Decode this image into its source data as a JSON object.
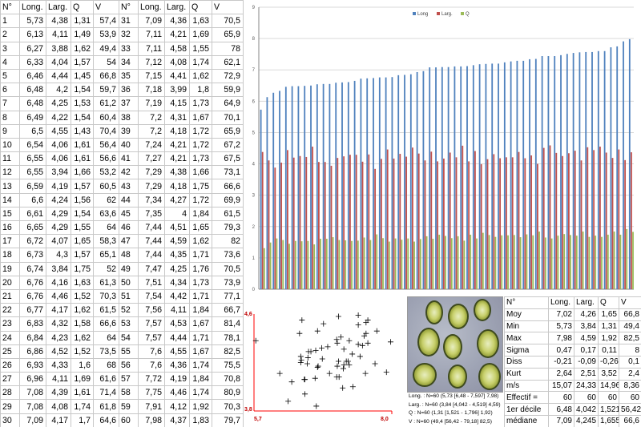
{
  "table": {
    "headers": [
      "N°",
      "Long.",
      "Larg.",
      "Q",
      "V",
      "N°",
      "Long.",
      "Larg.",
      "Q",
      "V"
    ],
    "rows": [
      [
        "1",
        "5,73",
        "4,38",
        "1,31",
        "57,4",
        "31",
        "7,09",
        "4,36",
        "1,63",
        "70,5"
      ],
      [
        "2",
        "6,13",
        "4,11",
        "1,49",
        "53,9",
        "32",
        "7,11",
        "4,21",
        "1,69",
        "65,9"
      ],
      [
        "3",
        "6,27",
        "3,88",
        "1,62",
        "49,4",
        "33",
        "7,11",
        "4,58",
        "1,55",
        "78"
      ],
      [
        "4",
        "6,33",
        "4,04",
        "1,57",
        "54",
        "34",
        "7,12",
        "4,08",
        "1,74",
        "62,1"
      ],
      [
        "5",
        "6,46",
        "4,44",
        "1,45",
        "66,8",
        "35",
        "7,15",
        "4,41",
        "1,62",
        "72,9"
      ],
      [
        "6",
        "6,48",
        "4,2",
        "1,54",
        "59,7",
        "36",
        "7,18",
        "3,99",
        "1,8",
        "59,9"
      ],
      [
        "7",
        "6,48",
        "4,25",
        "1,53",
        "61,2",
        "37",
        "7,19",
        "4,15",
        "1,73",
        "64,9"
      ],
      [
        "8",
        "6,49",
        "4,22",
        "1,54",
        "60,4",
        "38",
        "7,2",
        "4,31",
        "1,67",
        "70,1"
      ],
      [
        "9",
        "6,5",
        "4,55",
        "1,43",
        "70,4",
        "39",
        "7,2",
        "4,18",
        "1,72",
        "65,9"
      ],
      [
        "10",
        "6,54",
        "4,06",
        "1,61",
        "56,4",
        "40",
        "7,24",
        "4,21",
        "1,72",
        "67,2"
      ],
      [
        "11",
        "6,55",
        "4,06",
        "1,61",
        "56,6",
        "41",
        "7,27",
        "4,21",
        "1,73",
        "67,5"
      ],
      [
        "12",
        "6,55",
        "3,94",
        "1,66",
        "53,2",
        "42",
        "7,29",
        "4,38",
        "1,66",
        "73,1"
      ],
      [
        "13",
        "6,59",
        "4,19",
        "1,57",
        "60,5",
        "43",
        "7,29",
        "4,18",
        "1,75",
        "66,6"
      ],
      [
        "14",
        "6,6",
        "4,24",
        "1,56",
        "62",
        "44",
        "7,34",
        "4,27",
        "1,72",
        "69,9"
      ],
      [
        "15",
        "6,61",
        "4,29",
        "1,54",
        "63,6",
        "45",
        "7,35",
        "4",
        "1,84",
        "61,5"
      ],
      [
        "16",
        "6,65",
        "4,29",
        "1,55",
        "64",
        "46",
        "7,44",
        "4,51",
        "1,65",
        "79,3"
      ],
      [
        "17",
        "6,72",
        "4,07",
        "1,65",
        "58,3",
        "47",
        "7,44",
        "4,59",
        "1,62",
        "82"
      ],
      [
        "18",
        "6,73",
        "4,3",
        "1,57",
        "65,1",
        "48",
        "7,44",
        "4,35",
        "1,71",
        "73,6"
      ],
      [
        "19",
        "6,74",
        "3,84",
        "1,75",
        "52",
        "49",
        "7,47",
        "4,25",
        "1,76",
        "70,5"
      ],
      [
        "20",
        "6,76",
        "4,16",
        "1,63",
        "61,3",
        "50",
        "7,51",
        "4,34",
        "1,73",
        "73,9"
      ],
      [
        "21",
        "6,76",
        "4,46",
        "1,52",
        "70,3",
        "51",
        "7,54",
        "4,42",
        "1,71",
        "77,1"
      ],
      [
        "22",
        "6,77",
        "4,17",
        "1,62",
        "61,5",
        "52",
        "7,56",
        "4,11",
        "1,84",
        "66,7"
      ],
      [
        "23",
        "6,83",
        "4,32",
        "1,58",
        "66,6",
        "53",
        "7,57",
        "4,53",
        "1,67",
        "81,4"
      ],
      [
        "24",
        "6,84",
        "4,23",
        "1,62",
        "64",
        "54",
        "7,57",
        "4,44",
        "1,71",
        "78,1"
      ],
      [
        "25",
        "6,86",
        "4,52",
        "1,52",
        "73,5",
        "55",
        "7,6",
        "4,55",
        "1,67",
        "82,5"
      ],
      [
        "26",
        "6,93",
        "4,33",
        "1,6",
        "68",
        "56",
        "7,6",
        "4,36",
        "1,74",
        "75,5"
      ],
      [
        "27",
        "6,96",
        "4,11",
        "1,69",
        "61,6",
        "57",
        "7,72",
        "4,19",
        "1,84",
        "70,8"
      ],
      [
        "28",
        "7,08",
        "4,39",
        "1,61",
        "71,4",
        "58",
        "7,75",
        "4,46",
        "1,74",
        "80,9"
      ],
      [
        "29",
        "7,08",
        "4,08",
        "1,74",
        "61,8",
        "59",
        "7,91",
        "4,12",
        "1,92",
        "70,3"
      ],
      [
        "30",
        "7,09",
        "4,17",
        "1,7",
        "64,6",
        "60",
        "7,98",
        "4,37",
        "1,83",
        "79,7"
      ]
    ]
  },
  "stats": {
    "headers": [
      "N°",
      "Long.",
      "Larg.",
      "Q",
      "V"
    ],
    "rows": [
      [
        "Moy",
        "7,02",
        "4,26",
        "1,65",
        "66,8"
      ],
      [
        "Min",
        "5,73",
        "3,84",
        "1,31",
        "49,4"
      ],
      [
        "Max",
        "7,98",
        "4,59",
        "1,92",
        "82,5"
      ],
      [
        "Sigma",
        "0,47",
        "0,17",
        "0,11",
        "8"
      ],
      [
        "Diss",
        "-0,21",
        "-0,09",
        "-0,26",
        "0,1"
      ],
      [
        "Kurt",
        "2,64",
        "2,51",
        "3,52",
        "2,4"
      ],
      [
        "m/s",
        "15,07",
        "24,33",
        "14,96",
        "8,36"
      ],
      [
        "Effectif =",
        "60",
        "60",
        "60",
        "60"
      ],
      [
        "1er décile",
        "6,48",
        "4,042",
        "1,521",
        "56,42"
      ],
      [
        "médiane",
        "7,09",
        "4,245",
        "1,655",
        "66,6"
      ],
      [
        "9ème décile",
        "7,597",
        "4,519",
        "1,796",
        "79,18"
      ]
    ]
  },
  "measurements": [
    "Long. : N=60  (5,73 [6,48 - 7,597] 7,98)",
    "Larg. : N=60  (3,84 [4,042 - 4,519] 4,59)",
    "Q : N=60  (1,31 [1,521 - 1,796] 1,92)",
    "V : N=60  (49,4 [56,42 - 79,18] 82,5)"
  ],
  "chart_data": [
    {
      "type": "bar",
      "ylim": [
        0,
        9
      ],
      "yticks": [
        "0",
        "1",
        "2",
        "3",
        "4",
        "5",
        "6",
        "7",
        "8",
        "9"
      ],
      "legend_position": "top-center",
      "categories": [
        "1",
        "2",
        "3",
        "4",
        "5",
        "6",
        "7",
        "8",
        "9",
        "10",
        "11",
        "12",
        "13",
        "14",
        "15",
        "16",
        "17",
        "18",
        "19",
        "20",
        "21",
        "22",
        "23",
        "24",
        "25",
        "26",
        "27",
        "28",
        "29",
        "30",
        "31",
        "32",
        "33",
        "34",
        "35",
        "36",
        "37",
        "38",
        "39",
        "40",
        "41",
        "42",
        "43",
        "44",
        "45",
        "46",
        "47",
        "48",
        "49",
        "50",
        "51",
        "52",
        "53",
        "54",
        "55",
        "56",
        "57",
        "58",
        "59",
        "60"
      ],
      "series": [
        {
          "name": "Long",
          "color": "#4f81bd",
          "values": [
            5.73,
            6.13,
            6.27,
            6.33,
            6.46,
            6.48,
            6.48,
            6.49,
            6.5,
            6.54,
            6.55,
            6.55,
            6.59,
            6.6,
            6.61,
            6.65,
            6.72,
            6.73,
            6.74,
            6.76,
            6.76,
            6.77,
            6.83,
            6.84,
            6.86,
            6.93,
            6.96,
            7.08,
            7.08,
            7.09,
            7.09,
            7.11,
            7.11,
            7.12,
            7.15,
            7.18,
            7.19,
            7.2,
            7.2,
            7.24,
            7.27,
            7.29,
            7.29,
            7.34,
            7.35,
            7.44,
            7.44,
            7.44,
            7.47,
            7.51,
            7.54,
            7.56,
            7.57,
            7.57,
            7.6,
            7.6,
            7.72,
            7.75,
            7.91,
            7.98
          ]
        },
        {
          "name": "Larg.",
          "color": "#c0504d",
          "values": [
            4.38,
            4.11,
            3.88,
            4.04,
            4.44,
            4.2,
            4.25,
            4.22,
            4.55,
            4.06,
            4.06,
            3.94,
            4.19,
            4.24,
            4.29,
            4.29,
            4.07,
            4.3,
            3.84,
            4.16,
            4.46,
            4.17,
            4.32,
            4.23,
            4.52,
            4.33,
            4.11,
            4.39,
            4.08,
            4.17,
            4.36,
            4.21,
            4.58,
            4.08,
            4.41,
            3.99,
            4.15,
            4.31,
            4.18,
            4.21,
            4.21,
            4.38,
            4.18,
            4.27,
            4,
            4.51,
            4.59,
            4.35,
            4.25,
            4.34,
            4.42,
            4.11,
            4.53,
            4.44,
            4.55,
            4.36,
            4.19,
            4.46,
            4.12,
            4.37
          ]
        },
        {
          "name": "Q",
          "color": "#9bbb59",
          "values": [
            1.31,
            1.49,
            1.62,
            1.57,
            1.45,
            1.54,
            1.53,
            1.54,
            1.43,
            1.61,
            1.61,
            1.66,
            1.57,
            1.56,
            1.54,
            1.55,
            1.65,
            1.57,
            1.75,
            1.63,
            1.52,
            1.62,
            1.58,
            1.62,
            1.52,
            1.6,
            1.69,
            1.61,
            1.74,
            1.7,
            1.63,
            1.69,
            1.55,
            1.74,
            1.62,
            1.8,
            1.73,
            1.67,
            1.72,
            1.72,
            1.73,
            1.66,
            1.75,
            1.72,
            1.84,
            1.65,
            1.62,
            1.71,
            1.76,
            1.73,
            1.71,
            1.84,
            1.67,
            1.71,
            1.67,
            1.74,
            1.84,
            1.74,
            1.92,
            1.83
          ]
        }
      ]
    },
    {
      "type": "scatter",
      "xlim": [
        5.7,
        8.0
      ],
      "ylim": [
        3.8,
        4.6
      ],
      "xtick_labels": [
        "5,7",
        "8,0"
      ],
      "ytick_labels": [
        "3,8",
        "4,6"
      ],
      "x": [
        5.73,
        6.13,
        6.27,
        6.33,
        6.46,
        6.48,
        6.48,
        6.49,
        6.5,
        6.54,
        6.55,
        6.55,
        6.59,
        6.6,
        6.61,
        6.65,
        6.72,
        6.73,
        6.74,
        6.76,
        6.76,
        6.77,
        6.83,
        6.84,
        6.86,
        6.93,
        6.96,
        7.08,
        7.08,
        7.09,
        7.09,
        7.11,
        7.11,
        7.12,
        7.15,
        7.18,
        7.19,
        7.2,
        7.2,
        7.24,
        7.27,
        7.29,
        7.29,
        7.34,
        7.35,
        7.44,
        7.44,
        7.44,
        7.47,
        7.51,
        7.54,
        7.56,
        7.57,
        7.57,
        7.6,
        7.6,
        7.72,
        7.75,
        7.91,
        7.98
      ],
      "y": [
        4.38,
        4.11,
        3.88,
        4.04,
        4.44,
        4.2,
        4.25,
        4.22,
        4.55,
        4.06,
        4.06,
        3.94,
        4.19,
        4.24,
        4.29,
        4.29,
        4.07,
        4.3,
        3.84,
        4.16,
        4.46,
        4.17,
        4.32,
        4.23,
        4.52,
        4.33,
        4.11,
        4.39,
        4.08,
        4.17,
        4.36,
        4.21,
        4.58,
        4.08,
        4.41,
        3.99,
        4.15,
        4.31,
        4.18,
        4.21,
        4.21,
        4.38,
        4.18,
        4.27,
        4,
        4.51,
        4.59,
        4.35,
        4.25,
        4.34,
        4.42,
        4.11,
        4.53,
        4.44,
        4.55,
        4.36,
        4.19,
        4.46,
        4.12,
        4.37
      ]
    }
  ],
  "colors": {
    "grid": "#d9d9d9",
    "axis": "#868686",
    "scatter_axis": "#ff0000",
    "scatter_axis_label": "#c00000"
  }
}
